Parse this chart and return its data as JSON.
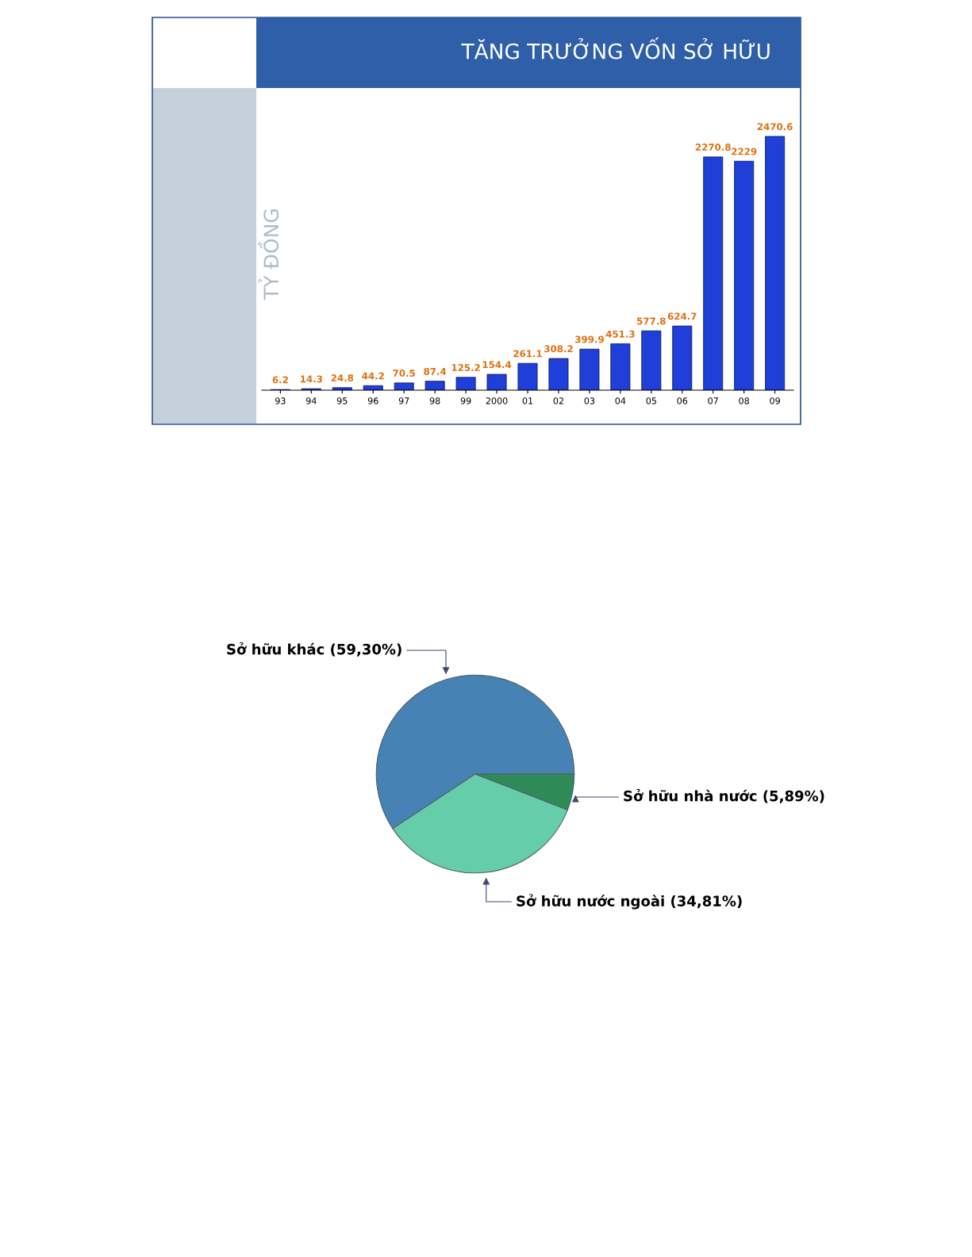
{
  "chart_data": [
    {
      "type": "bar",
      "title": "TĂNG TRƯỞNG VỐN SỞ HỮU",
      "ylabel": "TỶ ĐỒNG",
      "categories": [
        "93",
        "94",
        "95",
        "96",
        "97",
        "98",
        "99",
        "2000",
        "01",
        "02",
        "03",
        "04",
        "05",
        "06",
        "07",
        "08",
        "09"
      ],
      "values": [
        6.2,
        14.3,
        24.8,
        44.2,
        70.5,
        87.4,
        125.2,
        154.4,
        261.1,
        308.2,
        399.9,
        451.3,
        577.8,
        624.7,
        2270.8,
        2229,
        2470.6
      ],
      "color": "#1f3fd8",
      "data_labels": true,
      "grid": false,
      "legend": false
    },
    {
      "type": "pie",
      "categories": [
        "Sở hữu khác (59,30%)",
        "Sở hữu nước ngoài (34,81%)",
        "Sở hữu nhà nước (5,89%)"
      ],
      "values": [
        59.3,
        34.81,
        5.89
      ],
      "colors": [
        "#4682b4",
        "#66cdaa",
        "#2e8b57"
      ],
      "legend": false
    }
  ]
}
